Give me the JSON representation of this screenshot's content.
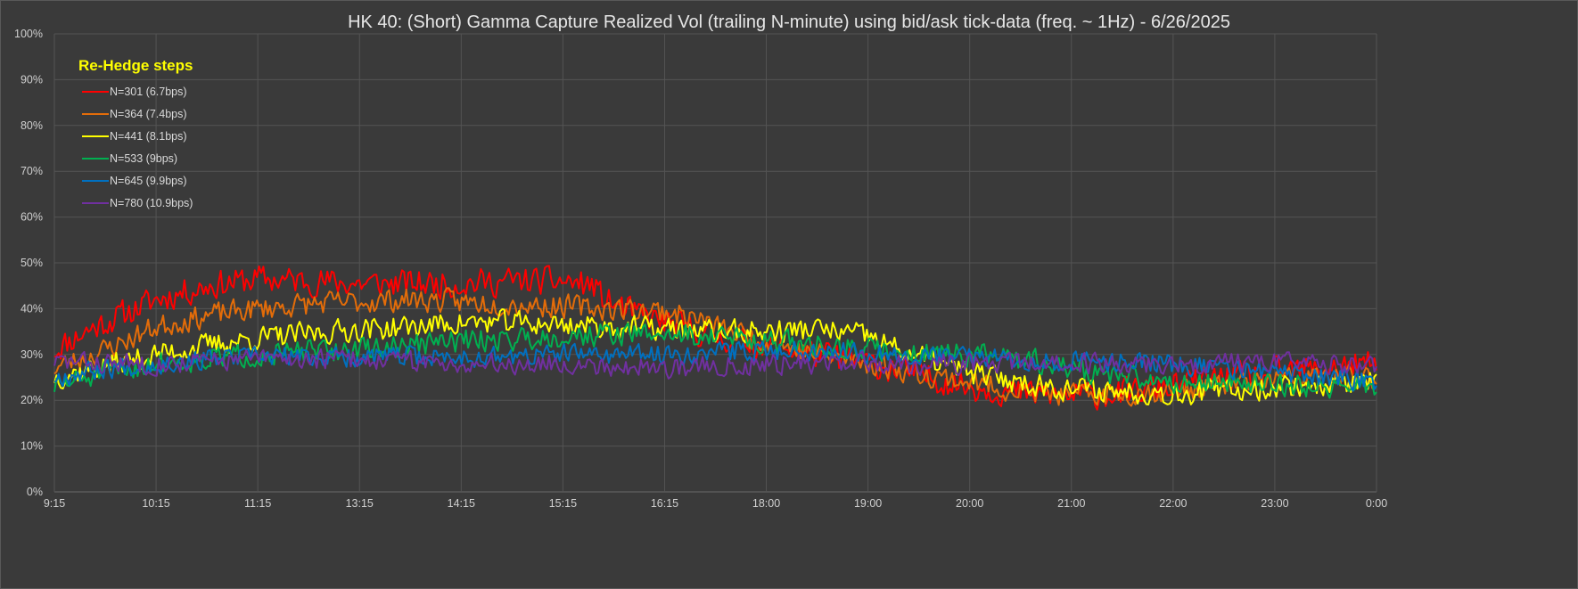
{
  "chart_data": {
    "type": "line",
    "title": "HK 40: (Short) Gamma Capture Realized Vol (trailing N-minute) using bid/ask tick-data (freq. ~ 1Hz) - 6/26/2025",
    "xlabel": "",
    "ylabel": "",
    "x_ticks": [
      "9:15",
      "10:15",
      "11:15",
      "13:15",
      "14:15",
      "15:15",
      "16:15",
      "18:00",
      "19:00",
      "20:00",
      "21:00",
      "22:00",
      "23:00",
      "0:00"
    ],
    "y_ticks": [
      "0%",
      "10%",
      "20%",
      "30%",
      "40%",
      "50%",
      "60%",
      "70%",
      "80%",
      "90%",
      "100%"
    ],
    "ylim": [
      0,
      100
    ],
    "grid": true,
    "legend": {
      "title": "Re-Hedge steps",
      "placement": "top-left inside"
    },
    "x_index_range": [
      0,
      13
    ],
    "series": [
      {
        "name": "N=301 (6.7bps)",
        "color": "#ff0000",
        "noise": 1.8,
        "seed": 11,
        "points": [
          [
            0,
            31
          ],
          [
            0.3,
            35
          ],
          [
            0.6,
            38
          ],
          [
            1.0,
            42
          ],
          [
            1.5,
            45
          ],
          [
            2.0,
            46.5
          ],
          [
            2.5,
            46
          ],
          [
            3.0,
            45.5
          ],
          [
            3.5,
            45.5
          ],
          [
            4.0,
            45.5
          ],
          [
            4.5,
            46
          ],
          [
            5.0,
            46
          ],
          [
            5.3,
            45
          ],
          [
            5.4,
            42
          ],
          [
            5.7,
            39
          ],
          [
            6.0,
            37
          ],
          [
            6.5,
            34
          ],
          [
            7.0,
            32
          ],
          [
            7.5,
            30
          ],
          [
            8.0,
            28
          ],
          [
            8.5,
            25.5
          ],
          [
            9.0,
            23
          ],
          [
            9.5,
            21.5
          ],
          [
            10.0,
            21
          ],
          [
            10.5,
            21.5
          ],
          [
            11.0,
            23
          ],
          [
            11.5,
            25
          ],
          [
            12.0,
            26
          ],
          [
            12.5,
            27
          ],
          [
            13.0,
            28
          ]
        ]
      },
      {
        "name": "N=364 (7.4bps)",
        "color": "#e36c09",
        "noise": 1.5,
        "seed": 23,
        "points": [
          [
            0,
            27
          ],
          [
            0.5,
            31
          ],
          [
            1.0,
            36
          ],
          [
            1.5,
            38.5
          ],
          [
            2.0,
            40
          ],
          [
            2.5,
            41
          ],
          [
            3.0,
            41.5
          ],
          [
            3.5,
            42
          ],
          [
            4.0,
            41.5
          ],
          [
            4.5,
            41
          ],
          [
            5.0,
            40.5
          ],
          [
            5.5,
            40
          ],
          [
            6.0,
            39.5
          ],
          [
            6.3,
            38
          ],
          [
            6.5,
            36
          ],
          [
            7.0,
            33
          ],
          [
            7.5,
            30
          ],
          [
            8.0,
            28
          ],
          [
            8.5,
            26
          ],
          [
            9.0,
            24
          ],
          [
            9.5,
            22
          ],
          [
            10.0,
            21
          ],
          [
            10.5,
            21.5
          ],
          [
            11.0,
            22
          ],
          [
            11.5,
            23.5
          ],
          [
            12.0,
            24.5
          ],
          [
            12.5,
            25
          ],
          [
            13.0,
            25
          ]
        ]
      },
      {
        "name": "N=441 (8.1bps)",
        "color": "#ffff00",
        "noise": 1.5,
        "seed": 37,
        "points": [
          [
            0,
            25
          ],
          [
            0.5,
            27.5
          ],
          [
            1.0,
            30
          ],
          [
            1.5,
            32
          ],
          [
            2.0,
            33.5
          ],
          [
            2.5,
            34.5
          ],
          [
            3.0,
            35.5
          ],
          [
            3.5,
            36
          ],
          [
            4.0,
            37
          ],
          [
            4.5,
            37
          ],
          [
            5.0,
            36.5
          ],
          [
            5.5,
            36
          ],
          [
            6.0,
            35.5
          ],
          [
            6.5,
            35
          ],
          [
            7.0,
            35
          ],
          [
            7.5,
            35.5
          ],
          [
            8.0,
            34
          ],
          [
            8.3,
            31
          ],
          [
            8.5,
            29.5
          ],
          [
            9.0,
            26
          ],
          [
            9.5,
            24
          ],
          [
            10.0,
            22.5
          ],
          [
            10.5,
            22
          ],
          [
            11.0,
            21.5
          ],
          [
            11.5,
            22
          ],
          [
            12.0,
            23
          ],
          [
            12.5,
            23.5
          ],
          [
            13.0,
            24
          ]
        ]
      },
      {
        "name": "N=533 (9bps)",
        "color": "#00b050",
        "noise": 1.5,
        "seed": 51,
        "points": [
          [
            0,
            23
          ],
          [
            0.5,
            26
          ],
          [
            1.0,
            28
          ],
          [
            1.5,
            29
          ],
          [
            2.0,
            30
          ],
          [
            2.5,
            30.5
          ],
          [
            3.0,
            31
          ],
          [
            3.5,
            32
          ],
          [
            4.0,
            33
          ],
          [
            4.5,
            33.5
          ],
          [
            5.0,
            34
          ],
          [
            5.5,
            34.5
          ],
          [
            6.0,
            34.5
          ],
          [
            6.5,
            34
          ],
          [
            7.0,
            33
          ],
          [
            7.5,
            32
          ],
          [
            8.0,
            31
          ],
          [
            8.5,
            30.5
          ],
          [
            9.0,
            30
          ],
          [
            9.5,
            29
          ],
          [
            10.0,
            27
          ],
          [
            10.5,
            25
          ],
          [
            11.0,
            24
          ],
          [
            11.5,
            24
          ],
          [
            12.0,
            23.5
          ],
          [
            12.5,
            23
          ],
          [
            13.0,
            23
          ]
        ]
      },
      {
        "name": "N=645 (9.9bps)",
        "color": "#0070c0",
        "noise": 1.3,
        "seed": 67,
        "points": [
          [
            0,
            25
          ],
          [
            0.5,
            27
          ],
          [
            1.0,
            28
          ],
          [
            1.5,
            29
          ],
          [
            2.0,
            29.5
          ],
          [
            2.5,
            29.5
          ],
          [
            3.0,
            29.5
          ],
          [
            3.5,
            29.5
          ],
          [
            4.0,
            29.5
          ],
          [
            4.5,
            29.5
          ],
          [
            5.0,
            30
          ],
          [
            5.5,
            30
          ],
          [
            6.0,
            30
          ],
          [
            6.5,
            30.5
          ],
          [
            7.0,
            31
          ],
          [
            7.5,
            31
          ],
          [
            8.0,
            30.5
          ],
          [
            8.5,
            30
          ],
          [
            9.0,
            29.5
          ],
          [
            9.5,
            29
          ],
          [
            10.0,
            28.5
          ],
          [
            10.5,
            28.5
          ],
          [
            11.0,
            28
          ],
          [
            11.5,
            27
          ],
          [
            12.0,
            26
          ],
          [
            12.5,
            25
          ],
          [
            13.0,
            24
          ]
        ]
      },
      {
        "name": "N=780 (10.9bps)",
        "color": "#7030a0",
        "noise": 1.3,
        "seed": 83,
        "points": [
          [
            0,
            28.5
          ],
          [
            0.5,
            28
          ],
          [
            1.0,
            28
          ],
          [
            1.5,
            28.5
          ],
          [
            2.0,
            29
          ],
          [
            2.5,
            29
          ],
          [
            3.0,
            29
          ],
          [
            3.5,
            28.5
          ],
          [
            4.0,
            28
          ],
          [
            4.5,
            28
          ],
          [
            5.0,
            28
          ],
          [
            5.5,
            27.5
          ],
          [
            6.0,
            27
          ],
          [
            6.5,
            27.5
          ],
          [
            7.0,
            28
          ],
          [
            7.5,
            28
          ],
          [
            8.0,
            28
          ],
          [
            8.5,
            28
          ],
          [
            9.0,
            28
          ],
          [
            9.5,
            28
          ],
          [
            10.0,
            28
          ],
          [
            10.5,
            28
          ],
          [
            11.0,
            28
          ],
          [
            11.5,
            28
          ],
          [
            12.0,
            28
          ],
          [
            12.5,
            28
          ],
          [
            13.0,
            28
          ]
        ]
      }
    ]
  }
}
